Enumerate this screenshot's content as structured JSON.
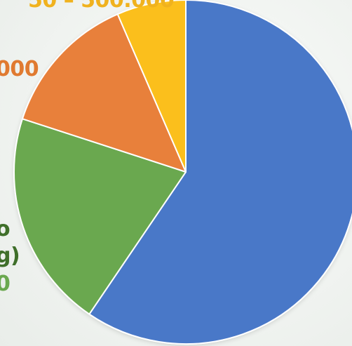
{
  "chart_data": {
    "type": "pie",
    "start_angle_deg": 0,
    "direction": "clockwise",
    "slices": [
      {
        "key": "blue",
        "value": 59.5,
        "color": "#4a78c8"
      },
      {
        "key": "green",
        "value": 20.5,
        "color": "#6aa84f"
      },
      {
        "key": "orange",
        "value": 13.5,
        "color": "#e8803a"
      },
      {
        "key": "yellow",
        "value": 6.5,
        "color": "#fbbf1a"
      }
    ],
    "labels": {
      "top": {
        "text": "50 – 500.000",
        "color": "#f0b21e"
      },
      "orange": {
        "text": "000",
        "color": "#e07a30"
      },
      "green_line1": {
        "text": "o",
        "color": "#3f6f2a"
      },
      "green_line2": {
        "text": "g)",
        "color": "#3f6f2a"
      },
      "green_line3": {
        "text": "0",
        "color": "#6aa84f"
      }
    }
  }
}
